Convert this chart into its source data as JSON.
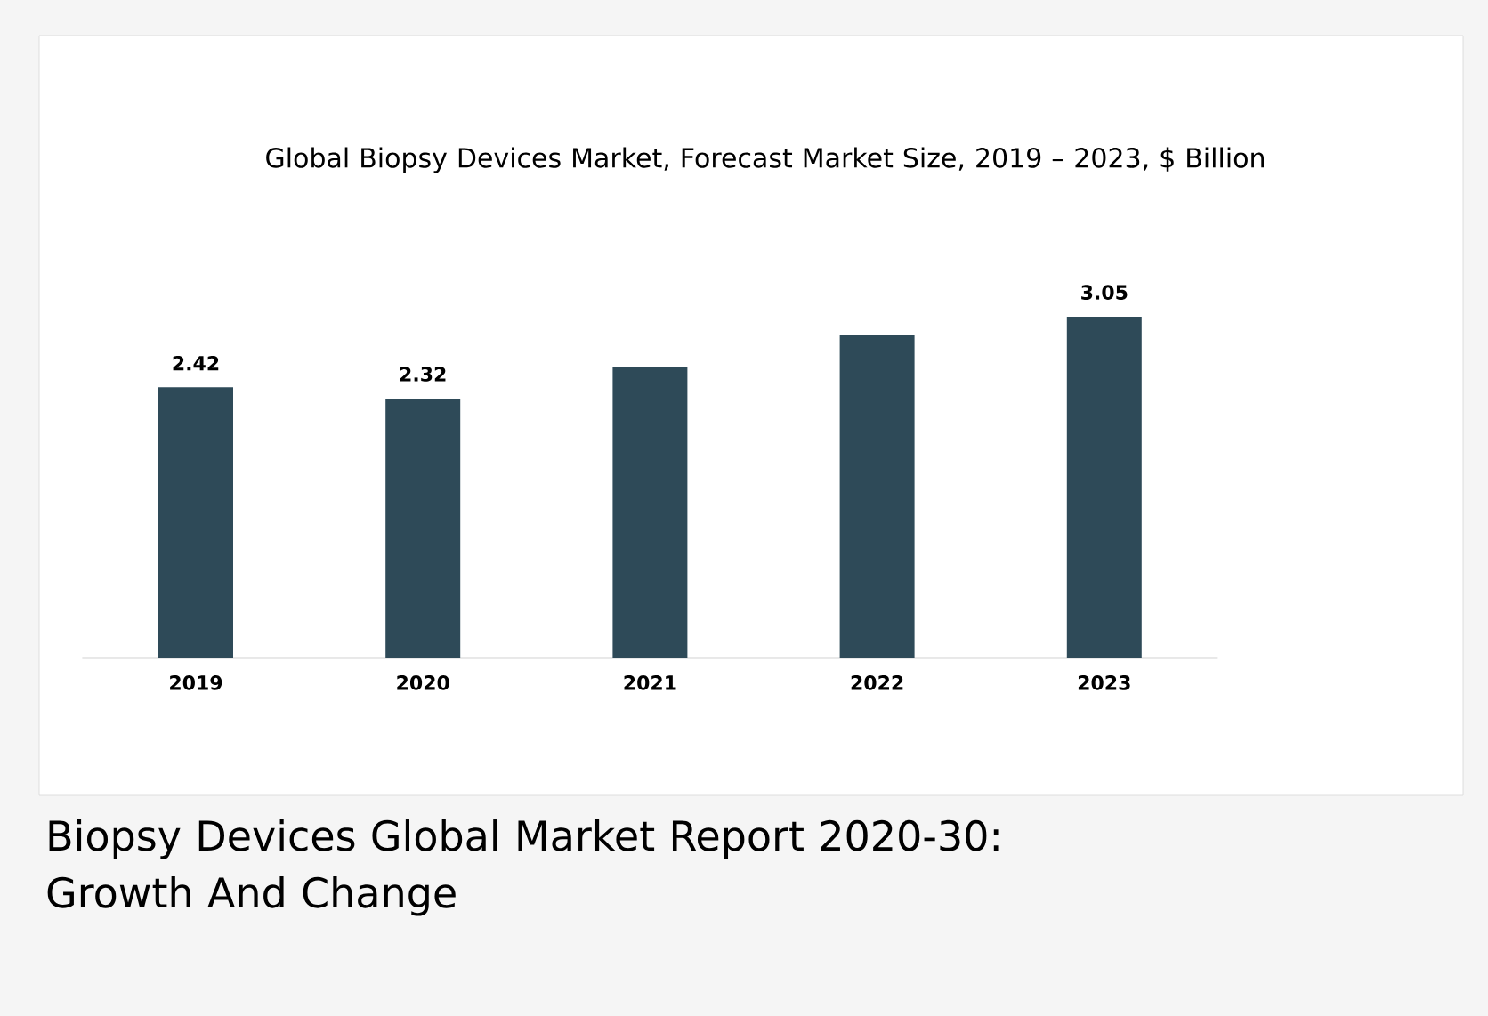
{
  "chart_data": {
    "type": "bar",
    "title": "Global Biopsy Devices Market, Forecast Market Size, 2019 – 2023, $ Billion",
    "subtitle": "Biopsy Devices Global Market Report 2020-30: Growth And Change",
    "categories": [
      "2019",
      "2020",
      "2021",
      "2022",
      "2023"
    ],
    "values": [
      2.42,
      2.32,
      2.6,
      2.89,
      3.05
    ],
    "value_labels": [
      "2.42",
      "2.32",
      null,
      null,
      "3.05"
    ],
    "color": "#2e4a58"
  }
}
